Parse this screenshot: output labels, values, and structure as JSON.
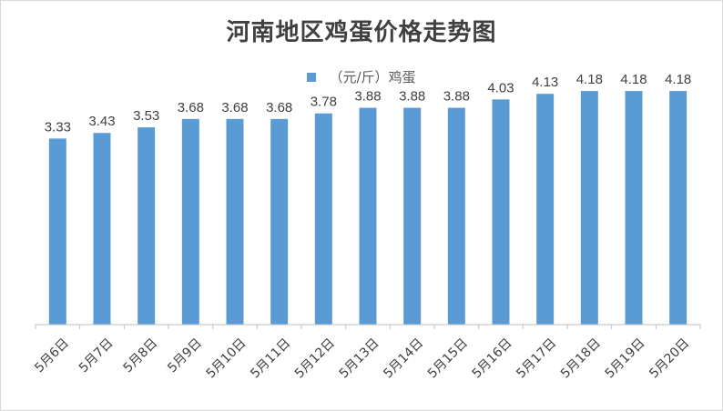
{
  "chart_data": {
    "type": "bar",
    "title": "河南地区鸡蛋价格走势图",
    "xlabel": "",
    "ylabel": "",
    "categories": [
      "5月6日",
      "5月7日",
      "5月8日",
      "5月9日",
      "5月10日",
      "5月11日",
      "5月12日",
      "5月13日",
      "5月14日",
      "5月15日",
      "5月16日",
      "5月17日",
      "5月18日",
      "5月19日",
      "5月20日"
    ],
    "series": [
      {
        "name": "（元/斤）鸡蛋",
        "values": [
          3.33,
          3.43,
          3.53,
          3.68,
          3.68,
          3.68,
          3.78,
          3.88,
          3.88,
          3.88,
          4.03,
          4.13,
          4.18,
          4.18,
          4.18
        ]
      }
    ],
    "ylim": [
      0,
      4.8
    ],
    "grid": false,
    "legend_position": "top",
    "data_labels": true,
    "colors": {
      "bar": "#5b9bd5",
      "axis": "#bfbfbf",
      "text": "#404040"
    }
  }
}
